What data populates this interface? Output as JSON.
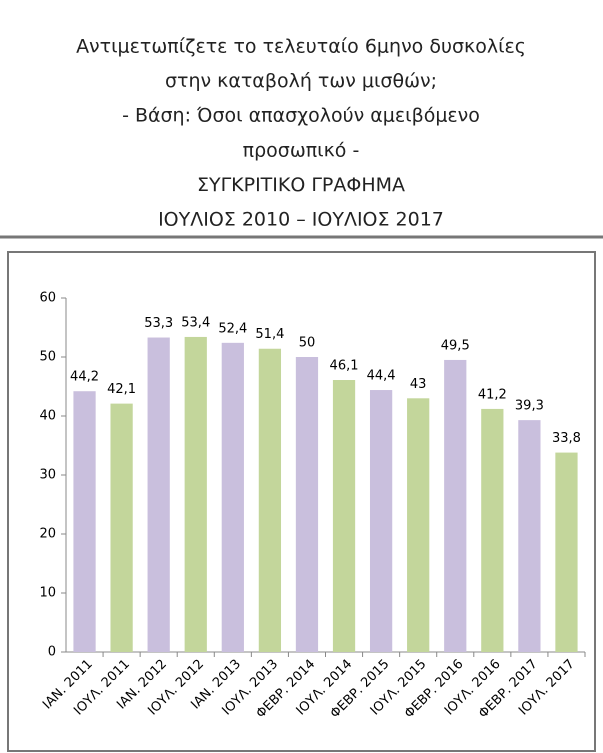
{
  "chart_data": {
    "type": "bar",
    "title": [
      "Αντιμετωπίζετε το τελευταίο 6μηνο δυσκολίες",
      "στην καταβολή των μισθών;",
      "- Βάση: Όσοι απασχολούν αμειβόμενο",
      "προσωπικό -",
      "ΣΥΓΚΡΙΤΙΚΟ ΓΡΑΦΗΜΑ",
      "ΙΟΥΛΙΟΣ 2010 – ΙΟΥΛΙΟΣ 2017"
    ],
    "categories": [
      "ΙΑΝ. 2011",
      "ΙΟΥΛ. 2011",
      "ΙΑΝ. 2012",
      "ΙΟΥΛ. 2012",
      "ΙΑΝ. 2013",
      "ΙΟΥΛ. 2013",
      "ΦΕΒΡ. 2014",
      "ΙΟΥΛ. 2014",
      "ΦΕΒΡ. 2015",
      "ΙΟΥΛ. 2015",
      "ΦΕΒΡ. 2016",
      "ΙΟΥΛ. 2016",
      "ΦΕΒΡ. 2017",
      "ΙΟΥΛ. 2017"
    ],
    "values": [
      44.2,
      42.1,
      53.3,
      53.4,
      52.4,
      51.4,
      50,
      46.1,
      44.4,
      43,
      49.5,
      41.2,
      39.3,
      33.8
    ],
    "value_labels": [
      "44,2",
      "42,1",
      "53,3",
      "53,4",
      "52,4",
      "51,4",
      "50",
      "46,1",
      "44,4",
      "43",
      "49,5",
      "41,2",
      "39,3",
      "33,8"
    ],
    "colors": [
      "#c9bfdd",
      "#c3d69b",
      "#c9bfdd",
      "#c3d69b",
      "#c9bfdd",
      "#c3d69b",
      "#c9bfdd",
      "#c3d69b",
      "#c9bfdd",
      "#c3d69b",
      "#c9bfdd",
      "#c3d69b",
      "#c9bfdd",
      "#c3d69b"
    ],
    "ylim": [
      0,
      60
    ],
    "yticks": [
      0,
      10,
      20,
      30,
      40,
      50,
      60
    ],
    "grid": false
  }
}
